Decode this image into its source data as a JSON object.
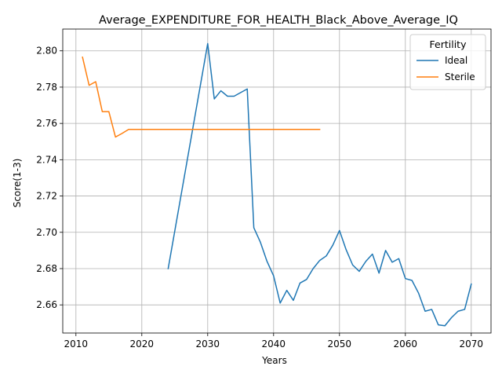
{
  "chart_data": {
    "type": "line",
    "title": "Average_EXPENDITURE_FOR_HEALTH_Black_Above_Average_IQ",
    "xlabel": "Years",
    "ylabel": "Score(1-3)",
    "xlim": [
      2008,
      2073
    ],
    "ylim": [
      2.6445,
      2.812
    ],
    "xticks": [
      2010,
      2020,
      2030,
      2040,
      2050,
      2060,
      2070
    ],
    "yticks": [
      2.66,
      2.68,
      2.7,
      2.72,
      2.74,
      2.76,
      2.78,
      2.8
    ],
    "ytick_labels": [
      "2.66",
      "2.68",
      "2.70",
      "2.72",
      "2.74",
      "2.76",
      "2.78",
      "2.80"
    ],
    "grid": true,
    "legend": {
      "title": "Fertility",
      "placement": "top-right"
    },
    "series": [
      {
        "name": "Ideal",
        "color": "#1f77b4",
        "x": [
          2024,
          2030,
          2031,
          2032,
          2033,
          2034,
          2035,
          2036,
          2037,
          2038,
          2039,
          2040,
          2041,
          2042,
          2043,
          2044,
          2045,
          2046,
          2047,
          2048,
          2049,
          2050,
          2051,
          2052,
          2053,
          2054,
          2055,
          2056,
          2057,
          2058,
          2059,
          2060,
          2061,
          2062,
          2063,
          2064,
          2065,
          2066,
          2067,
          2068,
          2069,
          2070
        ],
        "y": [
          2.68,
          2.804,
          2.7735,
          2.778,
          2.775,
          2.775,
          2.777,
          2.779,
          2.7025,
          2.6945,
          2.684,
          2.676,
          2.661,
          2.668,
          2.6625,
          2.672,
          2.674,
          2.68,
          2.6845,
          2.687,
          2.693,
          2.701,
          2.6905,
          2.682,
          2.6785,
          2.684,
          2.688,
          2.6775,
          2.69,
          2.6835,
          2.6855,
          2.6745,
          2.6735,
          2.6665,
          2.6565,
          2.6575,
          2.649,
          2.6485,
          2.653,
          2.6565,
          2.6575,
          2.6715
        ]
      },
      {
        "name": "Sterile",
        "color": "#ff7f0e",
        "x": [
          2011,
          2012,
          2013,
          2014,
          2015,
          2016,
          2017,
          2018,
          2019,
          2020,
          2025,
          2030,
          2035,
          2040,
          2045,
          2047
        ],
        "y": [
          2.7965,
          2.781,
          2.783,
          2.7665,
          2.7665,
          2.7525,
          2.7545,
          2.7567,
          2.7567,
          2.7567,
          2.7567,
          2.7567,
          2.7567,
          2.7567,
          2.7567,
          2.7567
        ]
      }
    ]
  }
}
